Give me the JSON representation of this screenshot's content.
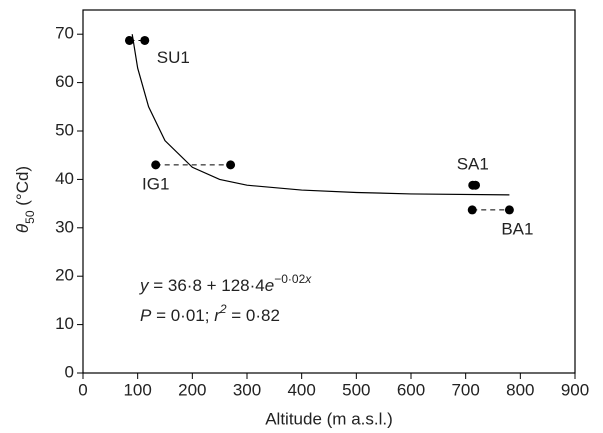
{
  "chart_data": {
    "type": "scatter",
    "xlabel": "Altitude (m a.s.l.)",
    "ylabel": [
      {
        "text": "θ",
        "italic": true
      },
      {
        "text": "50",
        "sub": true
      },
      {
        "text": " (°Cd)"
      }
    ],
    "xlim": [
      0,
      900
    ],
    "xticks": [
      0,
      100,
      200,
      300,
      400,
      500,
      600,
      700,
      800,
      900
    ],
    "ylim": [
      0,
      75
    ],
    "yticks": [
      0,
      10,
      20,
      30,
      40,
      50,
      60,
      70
    ],
    "color": "#000000",
    "series": [
      {
        "name": "SU1",
        "x": [
          85,
          113
        ],
        "values": [
          68.7,
          68.7
        ]
      },
      {
        "name": "IG1",
        "x": [
          133,
          270
        ],
        "values": [
          43,
          43
        ]
      },
      {
        "name": "SA1",
        "x": [
          713,
          718
        ],
        "values": [
          38.8,
          38.8
        ]
      },
      {
        "name": "BA1",
        "x": [
          712,
          780
        ],
        "values": [
          33.7,
          33.7
        ]
      }
    ],
    "fit": {
      "x": [
        90,
        100,
        120,
        150,
        200,
        250,
        300,
        400,
        500,
        600,
        780
      ],
      "values": [
        70,
        63,
        55,
        48,
        42.5,
        40,
        38.8,
        37.8,
        37.3,
        37,
        36.8
      ]
    },
    "annotations": [
      [
        {
          "text": "y",
          "italic": true
        },
        {
          "text": " = 36·8 + 128·4"
        },
        {
          "text": "e",
          "italic": true
        },
        {
          "text": "−0·02",
          "sup": true
        },
        {
          "text": "x",
          "sup": true,
          "italic": true
        }
      ],
      [
        {
          "text": "P",
          "italic": true
        },
        {
          "text": " = 0·01; "
        },
        {
          "text": "r",
          "italic": true
        },
        {
          "text": "2",
          "sup": true,
          "italic": true
        },
        {
          "text": " = 0·82"
        }
      ]
    ]
  }
}
